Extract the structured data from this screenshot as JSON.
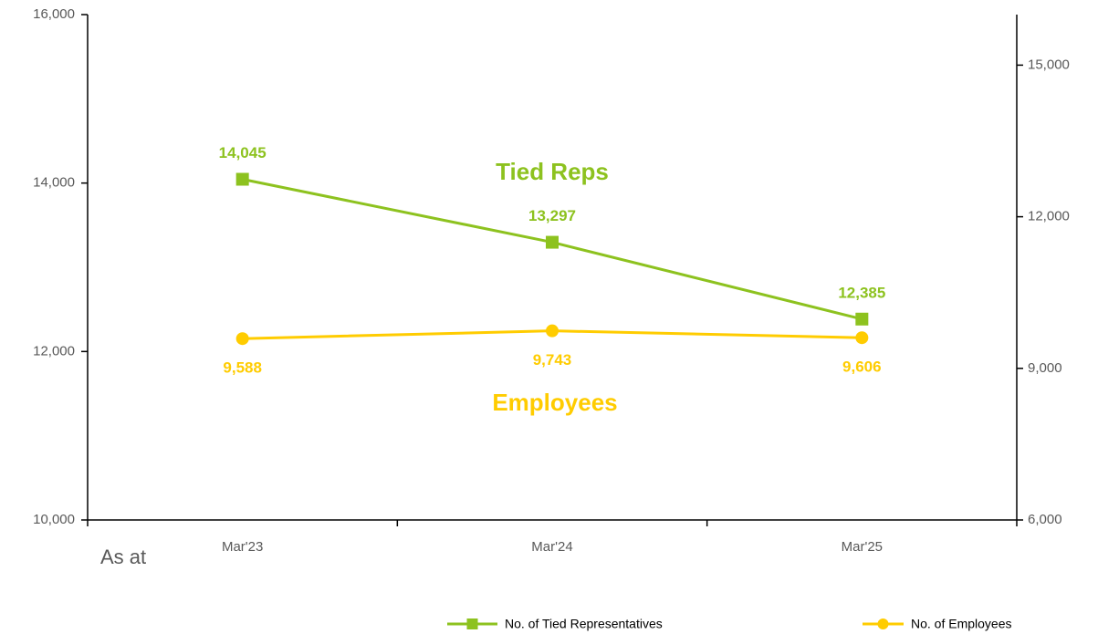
{
  "chart_data": {
    "type": "line",
    "categories": [
      "Mar'23",
      "Mar'24",
      "Mar'25"
    ],
    "x_label": "As at",
    "series": [
      {
        "name": "No. of Tied Representatives",
        "color": "#8dc21f",
        "marker": "square",
        "axis": "y",
        "values": [
          14045,
          13297,
          12385
        ],
        "value_labels": [
          "14,045",
          "13,297",
          "12,385"
        ]
      },
      {
        "name": "No. of Employees",
        "color": "#ffcc00",
        "marker": "circle",
        "axis": "y2",
        "values": [
          9588,
          9743,
          9606
        ],
        "value_labels": [
          "9,588",
          "9,743",
          "9,606"
        ]
      }
    ],
    "annotations": [
      "Tied Reps",
      "Employees"
    ],
    "ylim": [
      10000,
      16000
    ],
    "yticks": [
      {
        "value": 10000,
        "label": "10,000"
      },
      {
        "value": 12000,
        "label": "12,000"
      },
      {
        "value": 14000,
        "label": "14,000"
      },
      {
        "value": 16000,
        "label": "16,000"
      }
    ],
    "y2lim": [
      6000,
      16000
    ],
    "y2ticks": [
      {
        "value": 6000,
        "label": "6,000"
      },
      {
        "value": 9000,
        "label": "9,000"
      },
      {
        "value": 12000,
        "label": "12,000"
      },
      {
        "value": 15000,
        "label": "15,000"
      }
    ],
    "legend": "bottom"
  }
}
